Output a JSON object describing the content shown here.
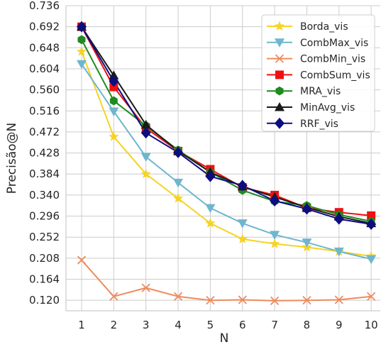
{
  "chart_data": {
    "type": "line",
    "xlabel": "N",
    "ylabel": "Precisão@N",
    "x": [
      1,
      2,
      3,
      4,
      5,
      6,
      7,
      8,
      9,
      10
    ],
    "x_ticks": [
      "1",
      "2",
      "3",
      "4",
      "5",
      "6",
      "7",
      "8",
      "9",
      "10"
    ],
    "ylim": [
      0.098,
      0.736
    ],
    "y_ticks": [
      "0.120",
      "0.164",
      "0.208",
      "0.252",
      "0.296",
      "0.340",
      "0.384",
      "0.428",
      "0.472",
      "0.516",
      "0.560",
      "0.604",
      "0.648",
      "0.692",
      "0.736"
    ],
    "grid": true,
    "legend_position": "top-right",
    "series": [
      {
        "name": "Borda_vis",
        "color": "#F5D327",
        "marker": "star",
        "values": [
          0.64,
          0.462,
          0.384,
          0.333,
          0.281,
          0.248,
          0.238,
          0.231,
          0.222,
          0.212
        ]
      },
      {
        "name": "CombMax_vis",
        "color": "#6FB6CD",
        "marker": "triangle-down",
        "values": [
          0.614,
          0.515,
          0.42,
          0.366,
          0.313,
          0.281,
          0.257,
          0.241,
          0.222,
          0.206
        ]
      },
      {
        "name": "CombMin_vis",
        "color": "#EE8B5E",
        "marker": "x",
        "values": [
          0.204,
          0.128,
          0.146,
          0.128,
          0.12,
          0.121,
          0.119,
          0.12,
          0.121,
          0.128
        ]
      },
      {
        "name": "CombSum_vis",
        "color": "#EE1111",
        "marker": "square",
        "values": [
          0.692,
          0.566,
          0.48,
          0.432,
          0.394,
          0.356,
          0.34,
          0.313,
          0.304,
          0.297
        ]
      },
      {
        "name": "MRA_vis",
        "color": "#1F8A1F",
        "marker": "hexagon",
        "values": [
          0.665,
          0.537,
          0.485,
          0.434,
          0.388,
          0.35,
          0.327,
          0.318,
          0.299,
          0.285
        ]
      },
      {
        "name": "MinAvg_vis",
        "color": "#1A1A1A",
        "marker": "triangle-up",
        "values": [
          0.692,
          0.59,
          0.487,
          0.432,
          0.388,
          0.358,
          0.336,
          0.314,
          0.295,
          0.281
        ]
      },
      {
        "name": "RRF_vis",
        "color": "#0D0D80",
        "marker": "diamond",
        "values": [
          0.692,
          0.578,
          0.47,
          0.429,
          0.379,
          0.36,
          0.328,
          0.311,
          0.29,
          0.279
        ]
      }
    ]
  }
}
